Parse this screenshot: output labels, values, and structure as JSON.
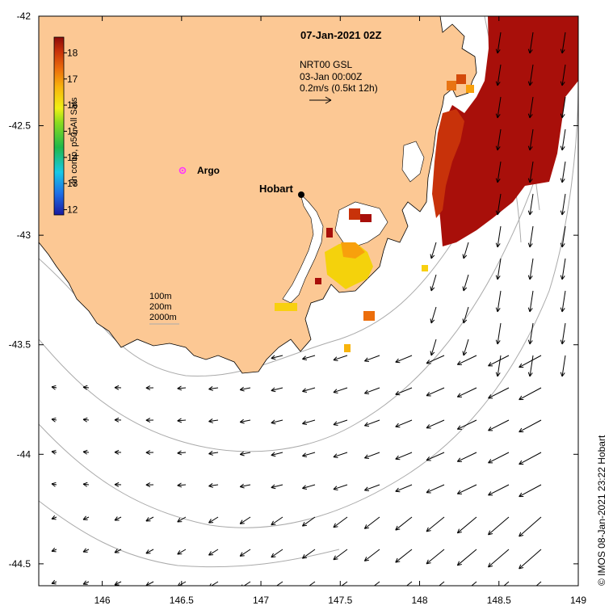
{
  "map": {
    "title": "07-Jan-2021 02Z",
    "x_ticks": [
      "146",
      "146.5",
      "147",
      "147.5",
      "148",
      "148.5",
      "149"
    ],
    "y_ticks": [
      "-42",
      "-42.5",
      "-43",
      "-43.5",
      "-44",
      "-44.5"
    ],
    "x_range": [
      145.6,
      149
    ],
    "y_range": [
      -44.6,
      -42
    ]
  },
  "colorbar": {
    "label": "4h comp, p50, All Sats",
    "ticks": [
      "18",
      "17",
      "16",
      "15",
      "14",
      "13",
      "12"
    ],
    "range": [
      11.8,
      18.6
    ]
  },
  "current_info": {
    "line1": "NRT00 GSL",
    "line2": "03-Jan 00:00Z",
    "line3": "0.2m/s (0.5kt 12h)"
  },
  "places": {
    "argo_label": "Argo",
    "hobart_label": "Hobart"
  },
  "isobaths": [
    "100m",
    "200m",
    "2000m"
  ],
  "credit": "© IMOS 08-Jan-2021 23:22 Hobart",
  "colors": {
    "land": "#fcc894",
    "warm_sst": "#a80f0a",
    "argo_marker": "#ff33ff",
    "contour": "#aaaaaa"
  }
}
